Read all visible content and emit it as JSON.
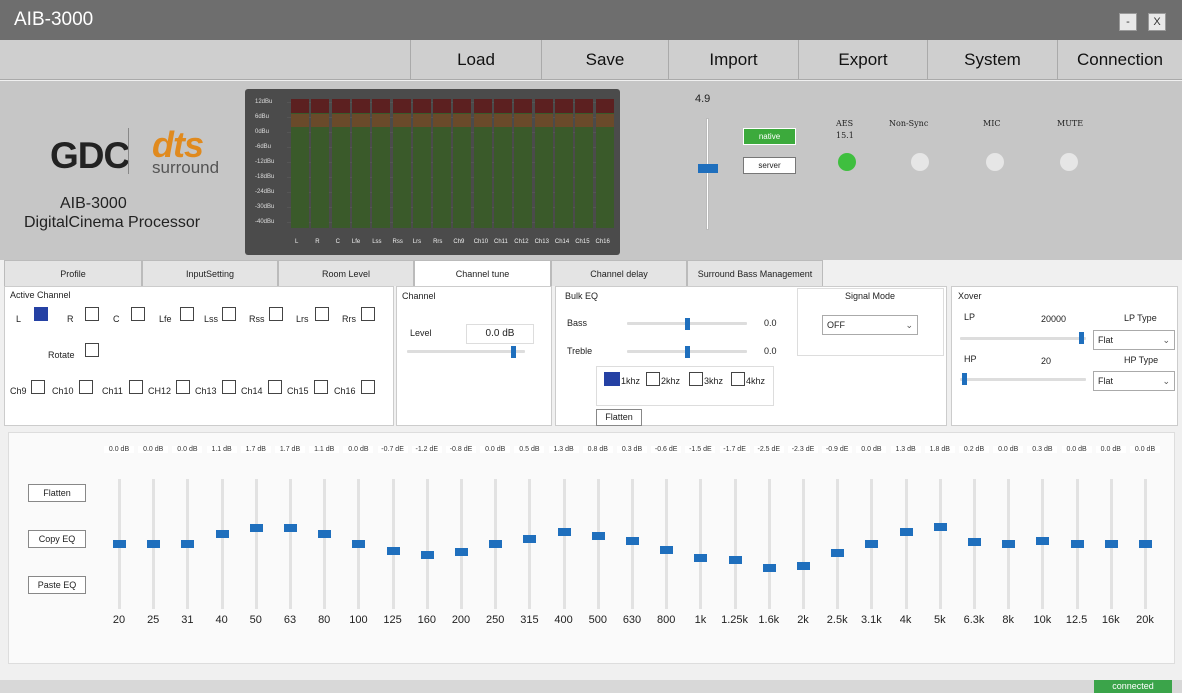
{
  "window": {
    "title": "AIB-3000",
    "minimize_label": "-",
    "close_label": "X"
  },
  "menu": [
    {
      "key": "load",
      "label": "Load"
    },
    {
      "key": "save",
      "label": "Save"
    },
    {
      "key": "import",
      "label": "Import"
    },
    {
      "key": "export",
      "label": "Export"
    },
    {
      "key": "system",
      "label": "System"
    },
    {
      "key": "connection",
      "label": "Connection"
    }
  ],
  "brand": {
    "gdc": "GDC",
    "dts": "dts",
    "surround": "surround",
    "product": "AIB-3000",
    "subtitle": "DigitalCinema Processor"
  },
  "meter": {
    "db_labels": [
      "12dBu",
      "6dBu",
      "0dBu",
      "-6dBu",
      "-12dBu",
      "-18dBu",
      "-24dBu",
      "-30dBu",
      "-40dBu"
    ],
    "channels": [
      "L",
      "R",
      "C",
      "Lfe",
      "Lss",
      "Rss",
      "Lrs",
      "Rrs",
      "Ch9",
      "Ch10",
      "Ch11",
      "Ch12",
      "Ch13",
      "Ch14",
      "Ch15",
      "Ch16"
    ]
  },
  "volume": {
    "value": "4.9",
    "level": 0.55
  },
  "source": {
    "native_label": "native",
    "server_label": "server"
  },
  "indicators": [
    {
      "label": "AES",
      "sub": "15.1",
      "color": "#3fbf3f"
    },
    {
      "label": "Non-Sync",
      "sub": "",
      "color": "#e6e6e6"
    },
    {
      "label": "MIC",
      "sub": "",
      "color": "#e6e6e6"
    },
    {
      "label": "MUTE",
      "sub": "",
      "color": "#e6e6e6"
    }
  ],
  "tabs": [
    {
      "label": "Profile",
      "active": false
    },
    {
      "label": "InputSetting",
      "active": false
    },
    {
      "label": "Room Level",
      "active": false
    },
    {
      "label": "Channel tune",
      "active": true
    },
    {
      "label": "Channel delay",
      "active": false
    },
    {
      "label": "Surround Bass Management",
      "active": false
    }
  ],
  "active_channel": {
    "title": "Active Channel",
    "row1": [
      {
        "label": "L",
        "checked": true
      },
      {
        "label": "R",
        "checked": false
      },
      {
        "label": "C",
        "checked": false
      },
      {
        "label": "Lfe",
        "checked": false
      },
      {
        "label": "Lss",
        "checked": false
      },
      {
        "label": "Rss",
        "checked": false
      },
      {
        "label": "Lrs",
        "checked": false
      },
      {
        "label": "Rrs",
        "checked": false
      }
    ],
    "rotate_label": "Rotate",
    "row3": [
      {
        "label": "Ch9",
        "checked": false
      },
      {
        "label": "Ch10",
        "checked": false
      },
      {
        "label": "Ch11",
        "checked": false
      },
      {
        "label": "CH12",
        "checked": false
      },
      {
        "label": "Ch13",
        "checked": false
      },
      {
        "label": "Ch14",
        "checked": false
      },
      {
        "label": "Ch15",
        "checked": false
      },
      {
        "label": "Ch16",
        "checked": false
      }
    ]
  },
  "channel": {
    "title": "Channel",
    "level_label": "Level",
    "level_value": "0.0 dB",
    "level_pos": 0.92
  },
  "bulk_eq": {
    "title": "Bulk EQ",
    "bass_label": "Bass",
    "bass_value": "0.0",
    "bass_pos": 0.5,
    "treble_label": "Treble",
    "treble_value": "0.0",
    "treble_pos": 0.5,
    "freqs": [
      {
        "label": "1khz",
        "checked": true
      },
      {
        "label": "2khz",
        "checked": false
      },
      {
        "label": "3khz",
        "checked": false
      },
      {
        "label": "4khz",
        "checked": false
      }
    ],
    "flatten_label": "Flatten"
  },
  "signal_mode": {
    "title": "Signal Mode",
    "value": "OFF"
  },
  "xover": {
    "title": "Xover",
    "lp_label": "LP",
    "lp_value": "20000",
    "lp_type_label": "LP Type",
    "lp_type": "Flat",
    "lp_pos": 0.98,
    "hp_label": "HP",
    "hp_value": "20",
    "hp_type_label": "HP Type",
    "hp_type": "Flat",
    "hp_pos": 0.02
  },
  "eq": {
    "flatten_label": "Flatten",
    "copy_label": "Copy EQ",
    "paste_label": "Paste EQ",
    "bands": [
      {
        "freq": "20",
        "gain": "0.0 dB",
        "value": 0.0
      },
      {
        "freq": "25",
        "gain": "0.0 dB",
        "value": 0.0
      },
      {
        "freq": "31",
        "gain": "0.0 dB",
        "value": 0.0
      },
      {
        "freq": "40",
        "gain": "1.1 dB",
        "value": 1.1
      },
      {
        "freq": "50",
        "gain": "1.7 dB",
        "value": 1.7
      },
      {
        "freq": "63",
        "gain": "1.7 dB",
        "value": 1.7
      },
      {
        "freq": "80",
        "gain": "1.1 dB",
        "value": 1.1
      },
      {
        "freq": "100",
        "gain": "0.0 dB",
        "value": 0.0
      },
      {
        "freq": "125",
        "gain": "-0.7 dE",
        "value": -0.7
      },
      {
        "freq": "160",
        "gain": "-1.2 dE",
        "value": -1.2
      },
      {
        "freq": "200",
        "gain": "-0.8 dE",
        "value": -0.8
      },
      {
        "freq": "250",
        "gain": "0.0 dB",
        "value": 0.0
      },
      {
        "freq": "315",
        "gain": "0.5 dB",
        "value": 0.5
      },
      {
        "freq": "400",
        "gain": "1.3 dB",
        "value": 1.3
      },
      {
        "freq": "500",
        "gain": "0.8 dB",
        "value": 0.8
      },
      {
        "freq": "630",
        "gain": "0.3 dB",
        "value": 0.3
      },
      {
        "freq": "800",
        "gain": "-0.6 dE",
        "value": -0.6
      },
      {
        "freq": "1k",
        "gain": "-1.5 dE",
        "value": -1.5
      },
      {
        "freq": "1.25k",
        "gain": "-1.7 dE",
        "value": -1.7
      },
      {
        "freq": "1.6k",
        "gain": "-2.5 dE",
        "value": -2.5
      },
      {
        "freq": "2k",
        "gain": "-2.3 dE",
        "value": -2.3
      },
      {
        "freq": "2.5k",
        "gain": "-0.9 dE",
        "value": -0.9
      },
      {
        "freq": "3.1k",
        "gain": "0.0 dB",
        "value": 0.0
      },
      {
        "freq": "4k",
        "gain": "1.3 dB",
        "value": 1.3
      },
      {
        "freq": "5k",
        "gain": "1.8 dB",
        "value": 1.8
      },
      {
        "freq": "6.3k",
        "gain": "0.2 dB",
        "value": 0.2
      },
      {
        "freq": "8k",
        "gain": "0.0 dB",
        "value": 0.0
      },
      {
        "freq": "10k",
        "gain": "0.3 dB",
        "value": 0.3
      },
      {
        "freq": "12.5",
        "gain": "0.0 dB",
        "value": 0.0
      },
      {
        "freq": "16k",
        "gain": "0.0 dB",
        "value": 0.0
      },
      {
        "freq": "20k",
        "gain": "0.0 dB",
        "value": 0.0
      }
    ]
  },
  "status": {
    "connection": "connected"
  }
}
